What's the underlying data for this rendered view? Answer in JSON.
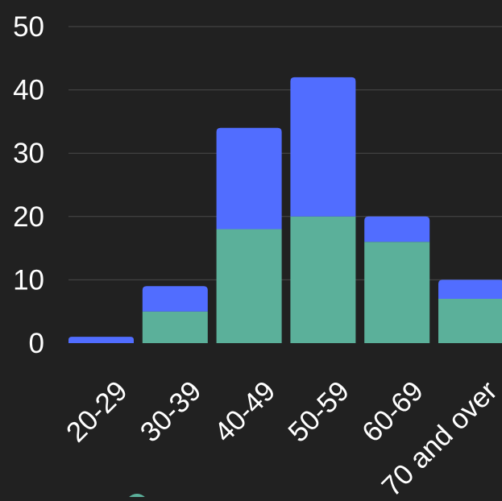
{
  "chart_data": {
    "type": "bar",
    "stacked": true,
    "title": "",
    "xlabel": "",
    "ylabel": "",
    "categories": [
      "20-29",
      "30-39",
      "40-49",
      "50-59",
      "60-69",
      "70 and over"
    ],
    "series": [
      {
        "values": [
          0,
          5,
          18,
          20,
          16,
          7
        ],
        "color": "#5BB09A"
      },
      {
        "values": [
          1,
          4,
          16,
          22,
          4,
          3
        ],
        "color": "#516DFF"
      }
    ],
    "ylim": [
      0,
      50
    ],
    "yticks": [
      0,
      10,
      20,
      30,
      40,
      50
    ],
    "grid": true,
    "legend_marker_color": "#5BB09A",
    "background": "#212121",
    "text_color": "#ffffff"
  }
}
